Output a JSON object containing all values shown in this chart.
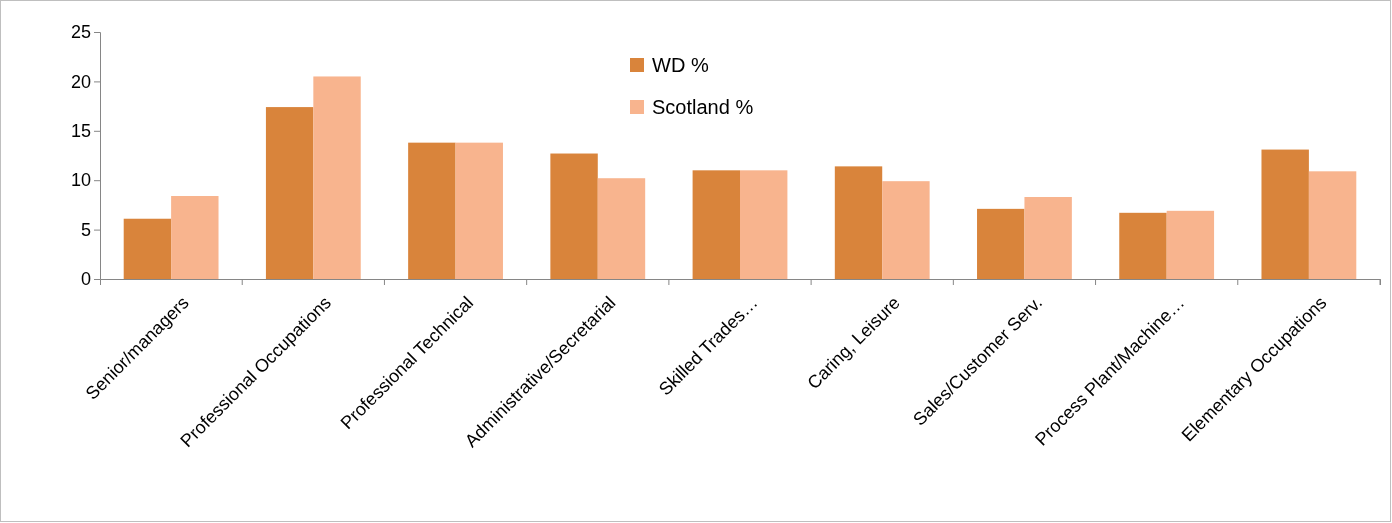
{
  "chart_data": {
    "type": "bar",
    "categories": [
      "Senior/managers",
      "Professional Occupations",
      "Professional Technical",
      "Administrative/Secretarial",
      "Skilled Trades…",
      "Caring, Leisure",
      "Sales/Customer Serv.",
      "Process Plant/Machine…",
      "Elementary Occupations"
    ],
    "series": [
      {
        "name": "WD %",
        "color": "#d9843b",
        "values": [
          6.1,
          17.4,
          13.8,
          12.7,
          11.0,
          11.4,
          7.1,
          6.7,
          13.1
        ]
      },
      {
        "name": "Scotland %",
        "color": "#f8b48e",
        "values": [
          8.4,
          20.5,
          13.8,
          10.2,
          11.0,
          9.9,
          8.3,
          6.9,
          10.9
        ]
      }
    ],
    "ylim": [
      0,
      25
    ],
    "yticks": [
      0,
      5,
      10,
      15,
      20,
      25
    ],
    "grid": false,
    "legend": "top"
  }
}
